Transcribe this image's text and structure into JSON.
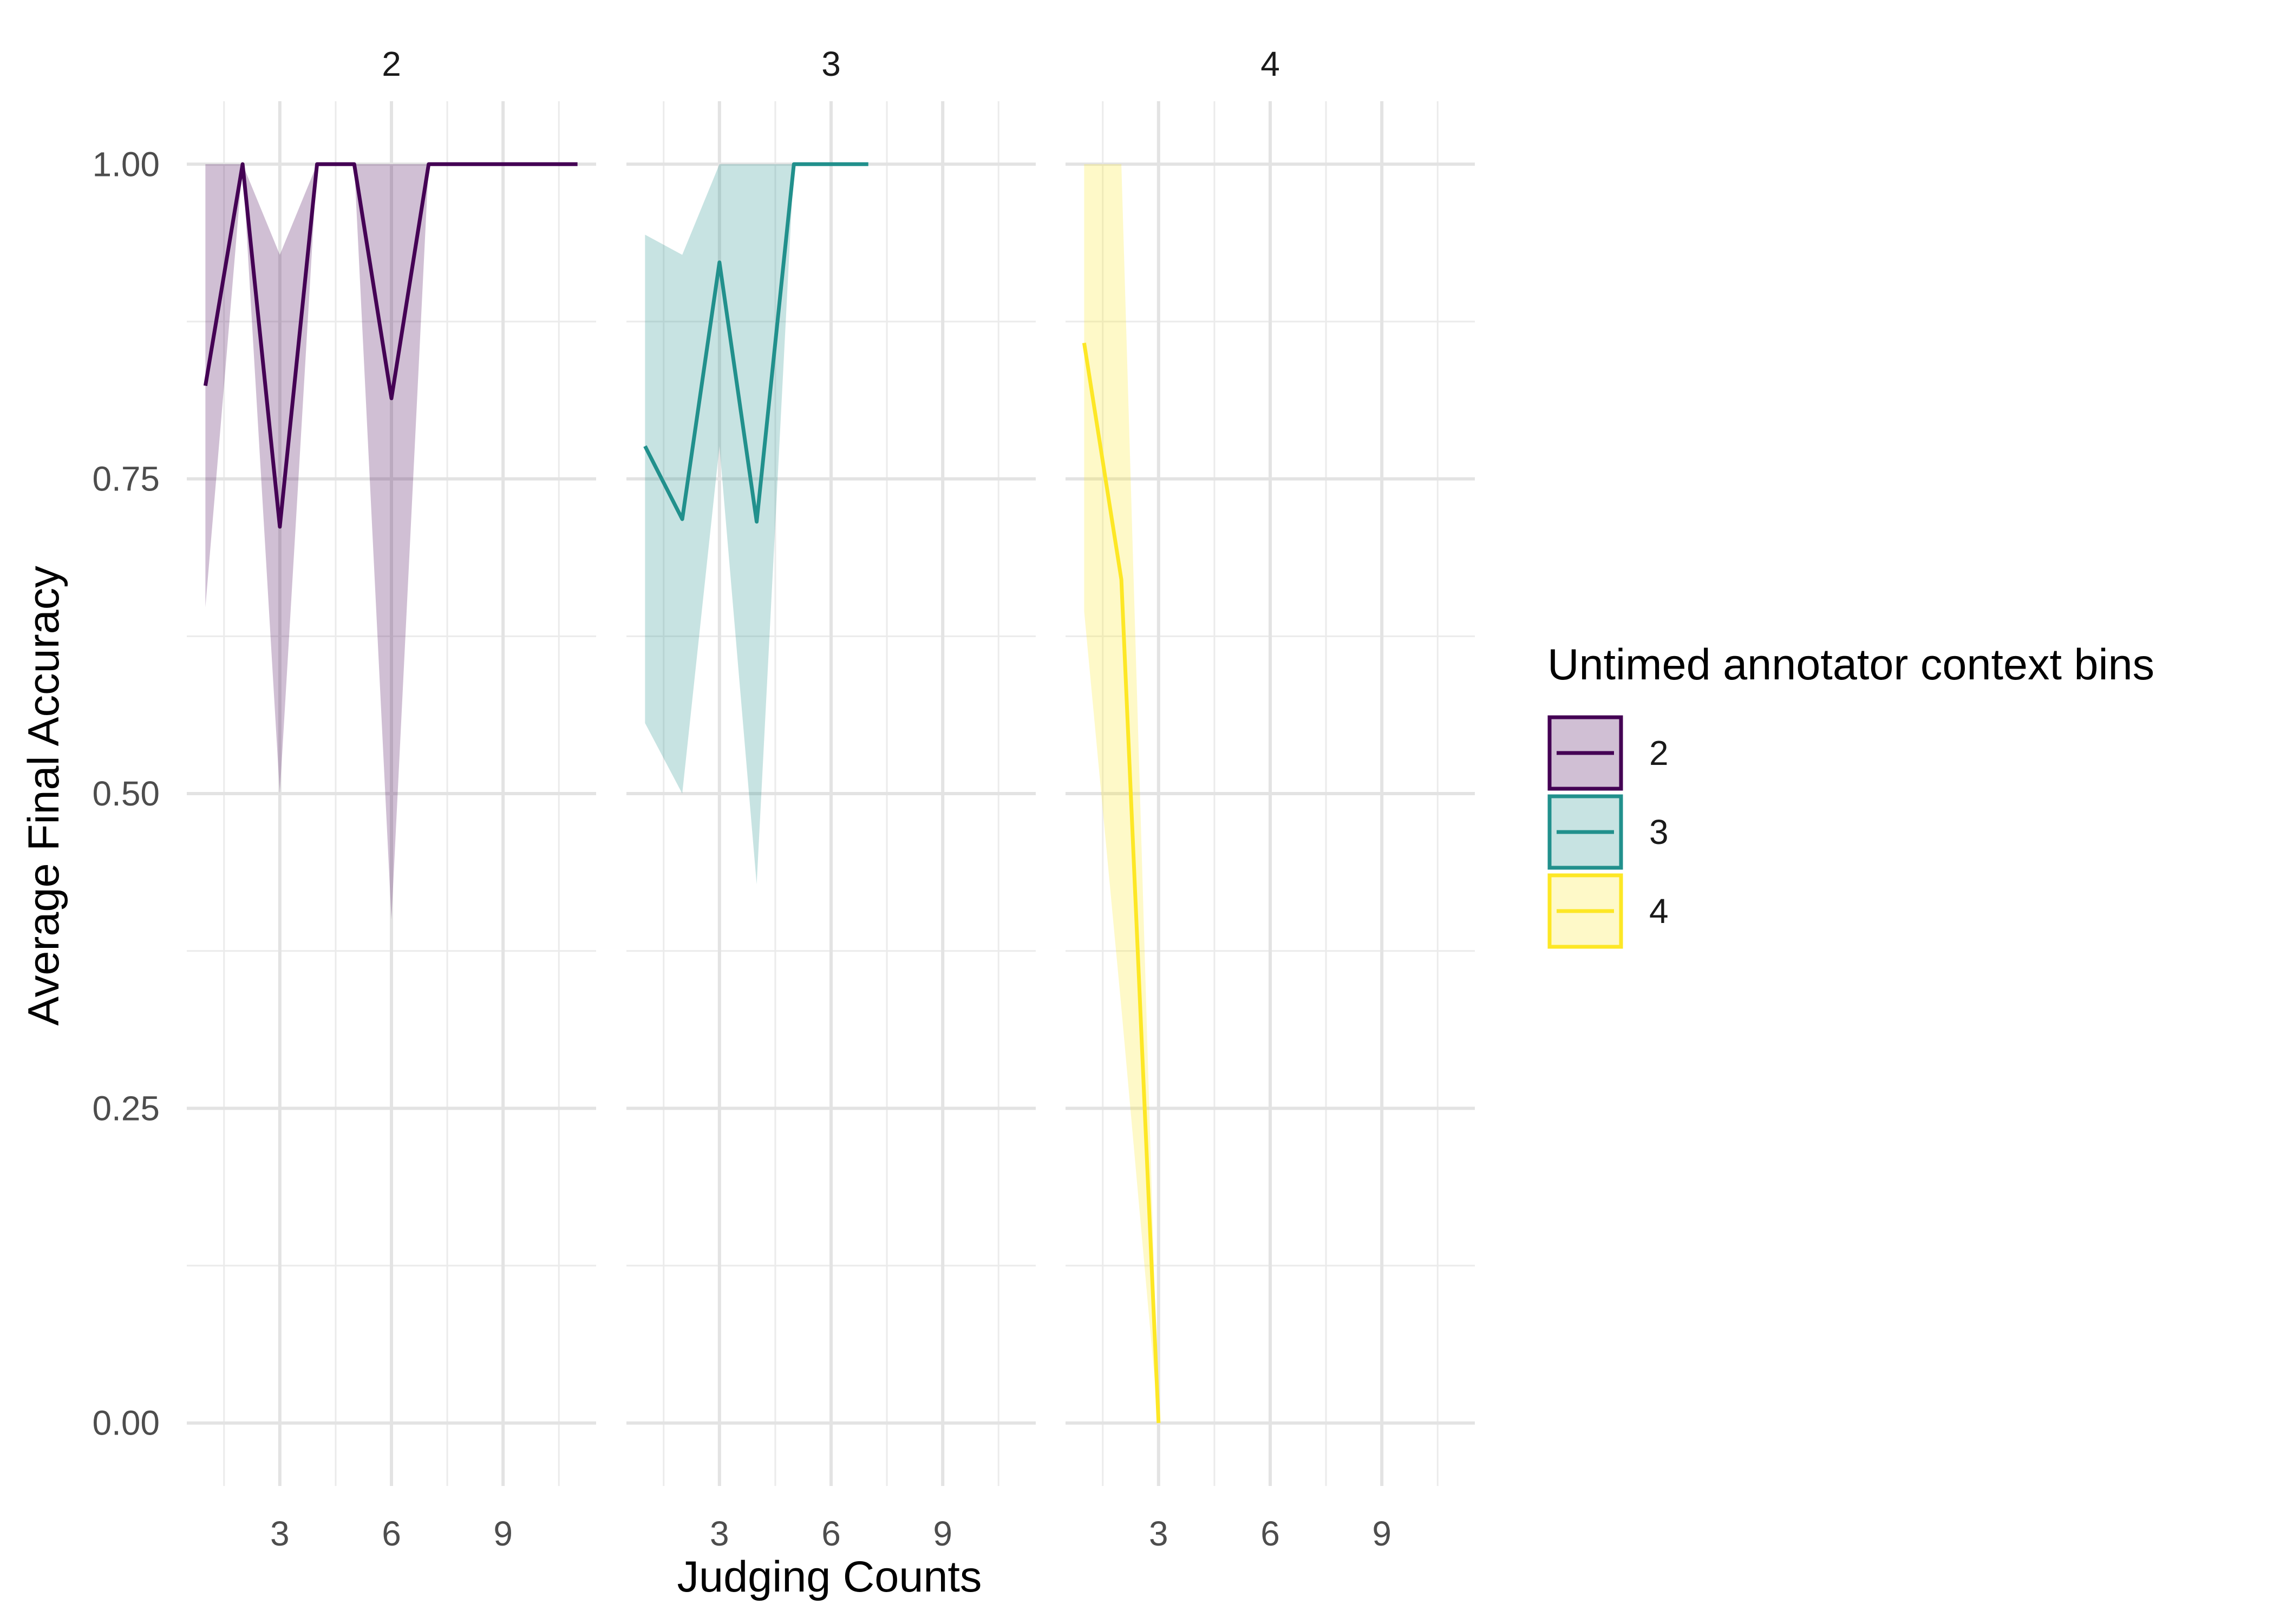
{
  "chart_data": {
    "type": "line",
    "subtype": "line-with-confidence-ribbon",
    "facet_panels": [
      "2",
      "3",
      "4"
    ],
    "xlabel": "Judging Counts",
    "ylabel": "Average Final Accuracy",
    "x_ticks": [
      3,
      6,
      9
    ],
    "x_tick_labels": [
      "3",
      "6",
      "9"
    ],
    "xlim": [
      0.5,
      11.5
    ],
    "y_ticks": [
      0,
      0.25,
      0.5,
      0.75,
      1
    ],
    "y_tick_labels": [
      "0.00",
      "0.25",
      "0.50",
      "0.75",
      "1.00"
    ],
    "ylim": [
      -0.05,
      1.05
    ],
    "grid": true,
    "legend": {
      "title": "Untimed annotator context bins",
      "position": "right",
      "items": [
        "2",
        "3",
        "4"
      ]
    },
    "series": [
      {
        "name": "2",
        "panel": "2",
        "color": "#440154",
        "x": [
          1,
          2,
          3,
          4,
          5,
          6,
          7,
          8,
          9,
          10,
          11
        ],
        "y": [
          0.824,
          1.0,
          0.712,
          1.0,
          1.0,
          0.814,
          1.0,
          1.0,
          1.0,
          1.0,
          1.0
        ],
        "lower": [
          0.648,
          1.0,
          0.5,
          1.0,
          1.0,
          0.4,
          1.0,
          1.0,
          1.0,
          1.0,
          1.0
        ],
        "upper": [
          1.0,
          1.0,
          0.928,
          1.0,
          1.0,
          1.0,
          1.0,
          1.0,
          1.0,
          1.0,
          1.0
        ]
      },
      {
        "name": "3",
        "panel": "3",
        "color": "#21908C",
        "x": [
          1,
          2,
          3,
          4,
          5,
          6,
          7
        ],
        "y": [
          0.776,
          0.718,
          0.922,
          0.716,
          1.0,
          1.0,
          1.0
        ],
        "lower": [
          0.556,
          0.5,
          0.776,
          0.428,
          1.0,
          1.0,
          1.0
        ],
        "upper": [
          0.944,
          0.928,
          1.0,
          1.0,
          1.0,
          1.0,
          1.0
        ]
      },
      {
        "name": "4",
        "panel": "4",
        "color": "#FDE725",
        "x": [
          1,
          2,
          3
        ],
        "y": [
          0.858,
          0.67,
          0.0
        ],
        "lower": [
          0.645,
          0.33,
          0.0
        ],
        "upper": [
          1.0,
          1.0,
          0.0
        ]
      }
    ]
  }
}
